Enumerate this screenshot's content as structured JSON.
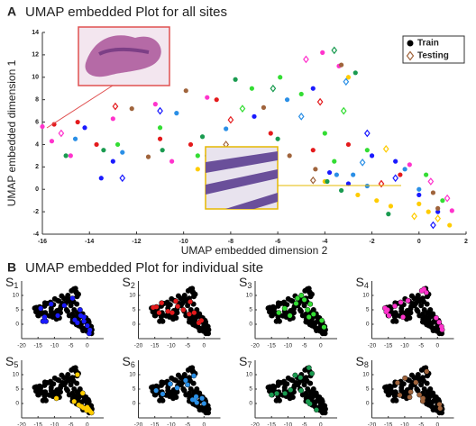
{
  "chart_data": [
    {
      "type": "scatter",
      "panel_label": "A",
      "title": "UMAP embedded Plot for all sites",
      "xlabel": "UMAP embedded dimension 2",
      "ylabel": "UMAP embedded dimension 1",
      "xlim": [
        -16,
        2
      ],
      "xticks": [
        -16,
        -14,
        -12,
        -10,
        -8,
        -6,
        -4,
        -2,
        0,
        2
      ],
      "ylim": [
        -4,
        14
      ],
      "yticks": [
        -4,
        -2,
        0,
        2,
        4,
        6,
        8,
        10,
        12,
        14
      ],
      "legend_position": "upper right",
      "legend": [
        {
          "label": "Train",
          "marker": "circle"
        },
        {
          "label": "Testing",
          "marker": "diamond"
        }
      ],
      "series": [
        {
          "color": "#1a1aff",
          "train": {
            "x": [
              -14.2,
              -13.5,
              -13,
              -9,
              -7,
              -4.5,
              -3.8,
              -3,
              -2,
              -1,
              0,
              0.8
            ],
            "y": [
              5.5,
              1,
              2.5,
              3,
              6.5,
              9,
              1.5,
              0.5,
              3,
              2.5,
              -0.5,
              -2
            ]
          },
          "testing": {
            "x": [
              -11,
              -12.6,
              -2.2,
              -1,
              0.6
            ],
            "y": [
              7,
              1,
              5,
              1,
              -3.2
            ]
          }
        },
        {
          "color": "#e41a1c",
          "train": {
            "x": [
              -15.5,
              -14.5,
              -13.7,
              -11,
              -9.7,
              -8.6,
              -6.3,
              -4.5,
              -3,
              -0.8
            ],
            "y": [
              5.8,
              6,
              4,
              4.5,
              4,
              8,
              5,
              3.5,
              4,
              1.3
            ]
          },
          "testing": {
            "x": [
              -12.9,
              -8,
              -4.2,
              -1.6
            ],
            "y": [
              7.4,
              6.2,
              7.8,
              0.5
            ]
          }
        },
        {
          "color": "#33dd33",
          "train": {
            "x": [
              -12.8,
              -11,
              -9.4,
              -7.1,
              -5.9,
              -5,
              -4,
              -3.6,
              -2.2,
              0.3,
              1
            ],
            "y": [
              4,
              5.5,
              3,
              9,
              10,
              8.5,
              5,
              2.5,
              3.5,
              1.3,
              -1
            ]
          },
          "testing": {
            "x": [
              -7.5,
              -3.2
            ],
            "y": [
              7.2,
              7
            ]
          }
        },
        {
          "color": "#ff33cc",
          "train": {
            "x": [
              -16,
              -15.6,
              -14.8,
              -13,
              -11.2,
              -10.5,
              -9,
              -4.1,
              -3.4,
              -0.4,
              1.4
            ],
            "y": [
              5.6,
              4.3,
              3,
              6.3,
              7.6,
              2.5,
              8.2,
              12.2,
              11,
              2.2,
              -1.9
            ]
          },
          "testing": {
            "x": [
              -15.2,
              -4.8,
              0.5,
              1.2
            ],
            "y": [
              5,
              11.6,
              0.7,
              -0.8
            ]
          }
        },
        {
          "color": "#ffcc00",
          "train": {
            "x": [
              -9.4,
              -3,
              -1.8,
              -1.2,
              0,
              0.4,
              1.3,
              -4,
              -2.6
            ],
            "y": [
              1.8,
              10,
              -1,
              -1.5,
              -1.3,
              -2,
              -3.2,
              0.7,
              -0.5
            ]
          },
          "testing": {
            "x": [
              -0.2,
              0.8,
              -1.4
            ],
            "y": [
              -2.4,
              -2.6,
              3.6
            ]
          }
        },
        {
          "color": "#2a8fe6",
          "train": {
            "x": [
              -14.6,
              -12.6,
              -10.3,
              -8.2,
              -5.6,
              -3.5,
              -2.8,
              -2.2,
              -0.6,
              0
            ],
            "y": [
              4.5,
              3.3,
              6.8,
              5.4,
              8,
              1.3,
              1.3,
              0.3,
              1.8,
              0
            ]
          },
          "testing": {
            "x": [
              -3.1,
              -5,
              -2.4
            ],
            "y": [
              9.6,
              6.5,
              2.4
            ]
          }
        },
        {
          "color": "#1a9b50",
          "train": {
            "x": [
              -15,
              -13.4,
              -10.9,
              -9.2,
              -7.8,
              -6,
              -3.9,
              -3.3,
              -2.7,
              -1.3
            ],
            "y": [
              3,
              3.5,
              3.5,
              4.7,
              9.8,
              4.5,
              0.7,
              -0.1,
              10.4,
              -2.2
            ]
          },
          "testing": {
            "x": [
              -3.6,
              -6.2
            ],
            "y": [
              12.4,
              9
            ]
          }
        },
        {
          "color": "#a0643c",
          "train": {
            "x": [
              -12.2,
              -11.5,
              -9.9,
              -8.5,
              -6.6,
              -5.5,
              -4.4,
              -3.3,
              0.6,
              0.8
            ],
            "y": [
              7.2,
              2.9,
              8.8,
              2.2,
              7.3,
              3,
              1.8,
              11.1,
              -0.3,
              -1.7
            ]
          },
          "testing": {
            "x": [
              -8.2,
              -4.5
            ],
            "y": [
              4,
              0.8
            ]
          }
        }
      ]
    },
    {
      "type": "site-panels",
      "panel_label": "B",
      "title": "UMAP embedded Plot for individual site",
      "background_color": "#000000",
      "xlim": [
        -20,
        5
      ],
      "xticks": [
        -20,
        -15,
        -10,
        -5,
        0
      ],
      "ylim": [
        -5,
        15
      ],
      "yticks": [
        0,
        5,
        10
      ],
      "panels": [
        {
          "label": "S",
          "sub": "1"
        },
        {
          "label": "S",
          "sub": "2"
        },
        {
          "label": "S",
          "sub": "3"
        },
        {
          "label": "S",
          "sub": "4"
        },
        {
          "label": "S",
          "sub": "5"
        },
        {
          "label": "S",
          "sub": "6"
        },
        {
          "label": "S",
          "sub": "7"
        },
        {
          "label": "S",
          "sub": "8"
        }
      ]
    }
  ]
}
